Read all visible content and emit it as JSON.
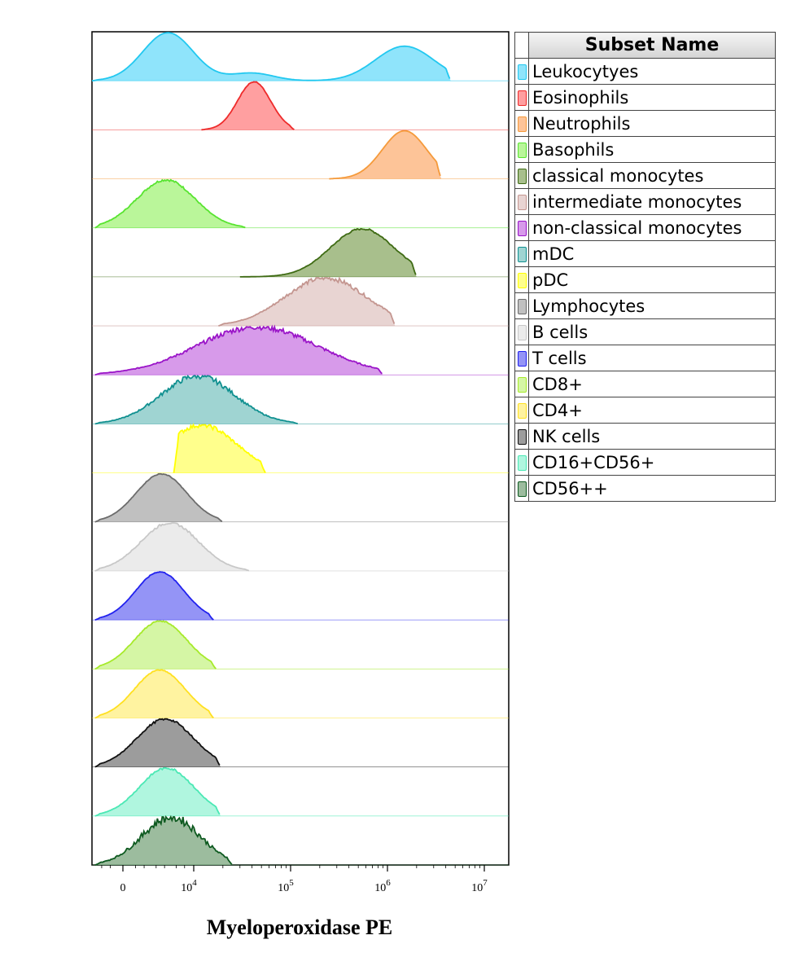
{
  "chart_data": {
    "type": "area",
    "subtype": "stacked histogram overlay (offset ridgeline)",
    "xlabel": "Myeloperoxidase PE",
    "x_scale": "biexponential",
    "x_ticks": [
      "0",
      "10^4",
      "10^5",
      "10^6",
      "10^7"
    ],
    "xlim": [
      -2000,
      20000000
    ],
    "legend_title": "Subset Name",
    "legend_position": "right",
    "series": [
      {
        "name": "Leukocytyes",
        "color": "#22c8f0",
        "fill": "#8fe4fb",
        "peaks": [
          [
            3500,
            1.0,
            0.26
          ],
          [
            40000,
            0.16,
            0.22
          ],
          [
            1500000,
            0.72,
            0.3
          ]
        ],
        "range": [
          -2000,
          4500000
        ],
        "noise": 0.0
      },
      {
        "name": "Eosinophils",
        "color": "#ee2b2b",
        "fill": "#ff9fa0",
        "peaks": [
          [
            42000,
            1.0,
            0.17
          ]
        ],
        "range": [
          12000,
          110000
        ],
        "noise": 0.02
      },
      {
        "name": "Neutrophils",
        "color": "#f59a3a",
        "fill": "#fdc498",
        "peaks": [
          [
            1500000,
            1.0,
            0.23
          ]
        ],
        "range": [
          250000,
          3600000
        ],
        "noise": 0.0
      },
      {
        "name": "Basophils",
        "color": "#58e430",
        "fill": "#baf69a",
        "peaks": [
          [
            3200,
            1.0,
            0.3
          ]
        ],
        "range": [
          -1500,
          35000
        ],
        "noise": 0.05
      },
      {
        "name": "classical monocytes",
        "color": "#3f6b14",
        "fill": "#a8bf8c",
        "peaks": [
          [
            550000,
            1.0,
            0.33
          ]
        ],
        "range": [
          30000,
          2000000
        ],
        "noise": 0.04
      },
      {
        "name": "intermediate monocytes",
        "color": "#c49690",
        "fill": "#e8d4d2",
        "peaks": [
          [
            230000,
            1.0,
            0.42
          ]
        ],
        "range": [
          18000,
          1200000
        ],
        "noise": 0.1
      },
      {
        "name": "non-classical monocytes",
        "color": "#9a14c8",
        "fill": "#d79aea",
        "peaks": [
          [
            45000,
            1.0,
            0.62
          ]
        ],
        "range": [
          -1500,
          900000
        ],
        "noise": 0.12
      },
      {
        "name": "mDC",
        "color": "#109090",
        "fill": "#9fd4d2",
        "peaks": [
          [
            11000,
            1.0,
            0.38
          ]
        ],
        "range": [
          -1500,
          120000
        ],
        "noise": 0.12
      },
      {
        "name": "pDC",
        "color": "#ffff00",
        "fill": "#ffff8c",
        "peaks": [
          [
            12000,
            1.0,
            0.36
          ]
        ],
        "range": [
          4500,
          55000
        ],
        "noise": 0.1
      },
      {
        "name": "Lymphocytes",
        "color": "#6c6c6c",
        "fill": "#c0c0c0",
        "peaks": [
          [
            2600,
            1.0,
            0.26
          ]
        ],
        "range": [
          -1500,
          20000
        ],
        "noise": 0.02
      },
      {
        "name": "B cells",
        "color": "#c8c8c8",
        "fill": "#ebebeb",
        "peaks": [
          [
            3800,
            1.0,
            0.3
          ]
        ],
        "range": [
          -1500,
          38000
        ],
        "noise": 0.05
      },
      {
        "name": "T cells",
        "color": "#2222ee",
        "fill": "#9494f6",
        "peaks": [
          [
            2400,
            1.0,
            0.25
          ]
        ],
        "range": [
          -1500,
          16000
        ],
        "noise": 0.02
      },
      {
        "name": "CD8+",
        "color": "#a6ea2a",
        "fill": "#d5f6a5",
        "peaks": [
          [
            2500,
            1.0,
            0.27
          ]
        ],
        "range": [
          -1500,
          17000
        ],
        "noise": 0.03
      },
      {
        "name": "CD4+",
        "color": "#ffe020",
        "fill": "#fff3a0",
        "peaks": [
          [
            2400,
            1.0,
            0.26
          ]
        ],
        "range": [
          -1500,
          16000
        ],
        "noise": 0.02
      },
      {
        "name": "NK cells",
        "color": "#111111",
        "fill": "#9c9c9c",
        "peaks": [
          [
            3100,
            1.0,
            0.29
          ]
        ],
        "range": [
          -1500,
          19000
        ],
        "noise": 0.05
      },
      {
        "name": "CD16+CD56+",
        "color": "#4ae8b4",
        "fill": "#b0f6df",
        "peaks": [
          [
            3300,
            1.0,
            0.28
          ]
        ],
        "range": [
          -1500,
          19000
        ],
        "noise": 0.05
      },
      {
        "name": "CD56++",
        "color": "#0e5a20",
        "fill": "#9cbc9e",
        "peaks": [
          [
            4000,
            1.0,
            0.3
          ]
        ],
        "range": [
          -1500,
          25000
        ],
        "noise": 0.2
      }
    ]
  }
}
